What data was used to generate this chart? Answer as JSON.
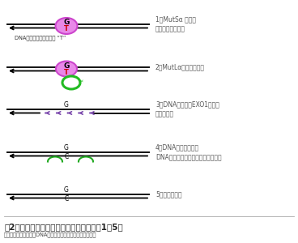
{
  "bg_color": "#ffffff",
  "title": "図2　ミスマッチ修復の経路　（ステップ1～5）",
  "subtitle": "二本鎖らせんから成るDNAを単純化し、線で描いています。",
  "step1_label": "1．MutSα による\nミスマッチの認識",
  "step2_label": "2．MutLαによる切れ目",
  "step3_label": "3．DNA分解酵素EXO1による\n誤りの分解",
  "step4_label": "4．DNAの再合成及び\nDNAリガーゼ１によるつなぎ合わせ",
  "step5_label": "5．修復の完了",
  "dna_label": "DNA複製中に生じた誤り “T”",
  "line_color": "#000000",
  "ellipse1_face": "#e888e8",
  "ellipse1_edge": "#cc44cc",
  "ellipse2_edge": "#22bb22",
  "g_color": "#000000",
  "t_color": "#cc0000",
  "c_color": "#000000",
  "purple_color": "#7744aa",
  "green_ligation_color": "#22aa22",
  "label_color": "#555555",
  "caption_color": "#222222",
  "subtitle_color": "#444444",
  "divider_color": "#aaaaaa"
}
